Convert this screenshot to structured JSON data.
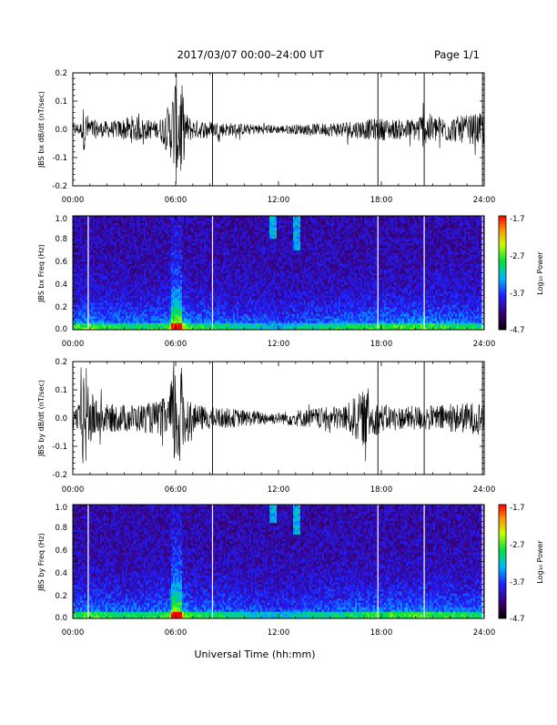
{
  "header": {
    "title": "2017/03/07  00:00–24:00 UT",
    "page": "Page 1/1"
  },
  "xlabel": "Universal Time (hh:mm)",
  "chart_data": [
    {
      "type": "line",
      "ylabel": "JBS bx dB/dt (nT/sec)",
      "xlim": [
        0,
        24
      ],
      "xticks": [
        "00:00",
        "06:00",
        "12:00",
        "18:00",
        "24:00"
      ],
      "ylim": [
        -0.2,
        0.2
      ],
      "yticks": [
        "0.2",
        "0.1",
        "0.0",
        "-0.1",
        "-0.2"
      ],
      "series": [
        {
          "color": "#000000",
          "envelope_hours": [
            0,
            0.5,
            0.6,
            0.8,
            1.0,
            1.5,
            2.5,
            3.5,
            4.0,
            5.0,
            5.7,
            6.0,
            6.3,
            6.6,
            7.0,
            8.0,
            9.0,
            10.0,
            11.0,
            12.0,
            13.0,
            14.0,
            15.0,
            16.0,
            17.0,
            18.0,
            19.0,
            20.0,
            20.5,
            21.0,
            22.0,
            23.0,
            24.0
          ],
          "envelope_amplitude": [
            0.02,
            0.025,
            0.08,
            0.06,
            0.04,
            0.03,
            0.03,
            0.05,
            0.04,
            0.03,
            0.1,
            0.2,
            0.19,
            0.06,
            0.035,
            0.03,
            0.025,
            0.02,
            0.018,
            0.015,
            0.018,
            0.02,
            0.025,
            0.03,
            0.035,
            0.04,
            0.035,
            0.04,
            0.07,
            0.05,
            0.045,
            0.05,
            0.06
          ]
        }
      ],
      "vertical_markers_hours": [
        8.15,
        17.8,
        20.5,
        23.9
      ]
    },
    {
      "type": "heatmap",
      "ylabel": "JBS bx Freq (Hz)",
      "xlim": [
        0,
        24
      ],
      "xticks": [
        "00:00",
        "06:00",
        "12:00",
        "18:00",
        "24:00"
      ],
      "ylim": [
        0,
        1.0
      ],
      "yticks": [
        "1.0",
        "0.8",
        "0.6",
        "0.4",
        "0.2",
        "0.0"
      ],
      "colorbar": {
        "label": "Log₁₀ Power",
        "ticks": [
          "-1.7",
          "-2.7",
          "-3.7",
          "-4.7"
        ],
        "range": [
          -4.7,
          -1.7
        ]
      },
      "features": {
        "broadband_hours": [
          6.0,
          6.1
        ],
        "gap_lines_hours": [
          0.9,
          8.15,
          17.8,
          20.5,
          23.9
        ],
        "high_freq_patches": [
          [
            11.5,
            11.9,
            0.8,
            1.0
          ],
          [
            12.8,
            13.3,
            0.7,
            1.0
          ]
        ]
      }
    },
    {
      "type": "line",
      "ylabel": "JBS by dB/dt (nT/sec)",
      "xlim": [
        0,
        24
      ],
      "xticks": [
        "00:00",
        "06:00",
        "12:00",
        "18:00",
        "24:00"
      ],
      "ylim": [
        -0.2,
        0.2
      ],
      "yticks": [
        "0.2",
        "0.1",
        "0.0",
        "-0.1",
        "-0.2"
      ],
      "series": [
        {
          "color": "#000000",
          "envelope_hours": [
            0,
            0.4,
            0.6,
            0.8,
            1.0,
            1.5,
            2.0,
            3.0,
            4.0,
            5.0,
            5.5,
            6.0,
            6.3,
            6.6,
            7.0,
            8.0,
            9.0,
            10.0,
            11.0,
            12.0,
            13.0,
            14.0,
            15.0,
            16.0,
            16.5,
            17.0,
            17.5,
            18.0,
            19.0,
            20.0,
            21.0,
            22.0,
            23.0,
            24.0
          ],
          "envelope_amplitude": [
            0.04,
            0.05,
            0.2,
            0.18,
            0.1,
            0.06,
            0.05,
            0.05,
            0.05,
            0.06,
            0.08,
            0.2,
            0.2,
            0.1,
            0.05,
            0.04,
            0.035,
            0.03,
            0.025,
            0.02,
            0.03,
            0.035,
            0.04,
            0.05,
            0.08,
            0.1,
            0.07,
            0.05,
            0.04,
            0.045,
            0.045,
            0.05,
            0.055,
            0.06
          ]
        }
      ],
      "vertical_markers_hours": [
        8.15,
        17.8,
        20.5,
        23.9
      ]
    },
    {
      "type": "heatmap",
      "ylabel": "JBS by Freq (Hz)",
      "xlim": [
        0,
        24
      ],
      "xticks": [
        "00:00",
        "06:00",
        "12:00",
        "18:00",
        "24:00"
      ],
      "ylim": [
        0,
        1.0
      ],
      "yticks": [
        "1.0",
        "0.8",
        "0.6",
        "0.4",
        "0.2",
        "0.0"
      ],
      "colorbar": {
        "label": "Log₁₀ Power",
        "ticks": [
          "-1.7",
          "-2.7",
          "-3.7",
          "-4.7"
        ],
        "range": [
          -4.7,
          -1.7
        ]
      },
      "features": {
        "broadband_hours": [
          6.0,
          6.1
        ],
        "gap_lines_hours": [
          0.9,
          8.15,
          17.8,
          20.5,
          23.9
        ],
        "high_freq_patches": [
          [
            11.5,
            11.9,
            0.85,
            1.0
          ],
          [
            12.8,
            13.3,
            0.75,
            1.0
          ]
        ]
      }
    }
  ]
}
